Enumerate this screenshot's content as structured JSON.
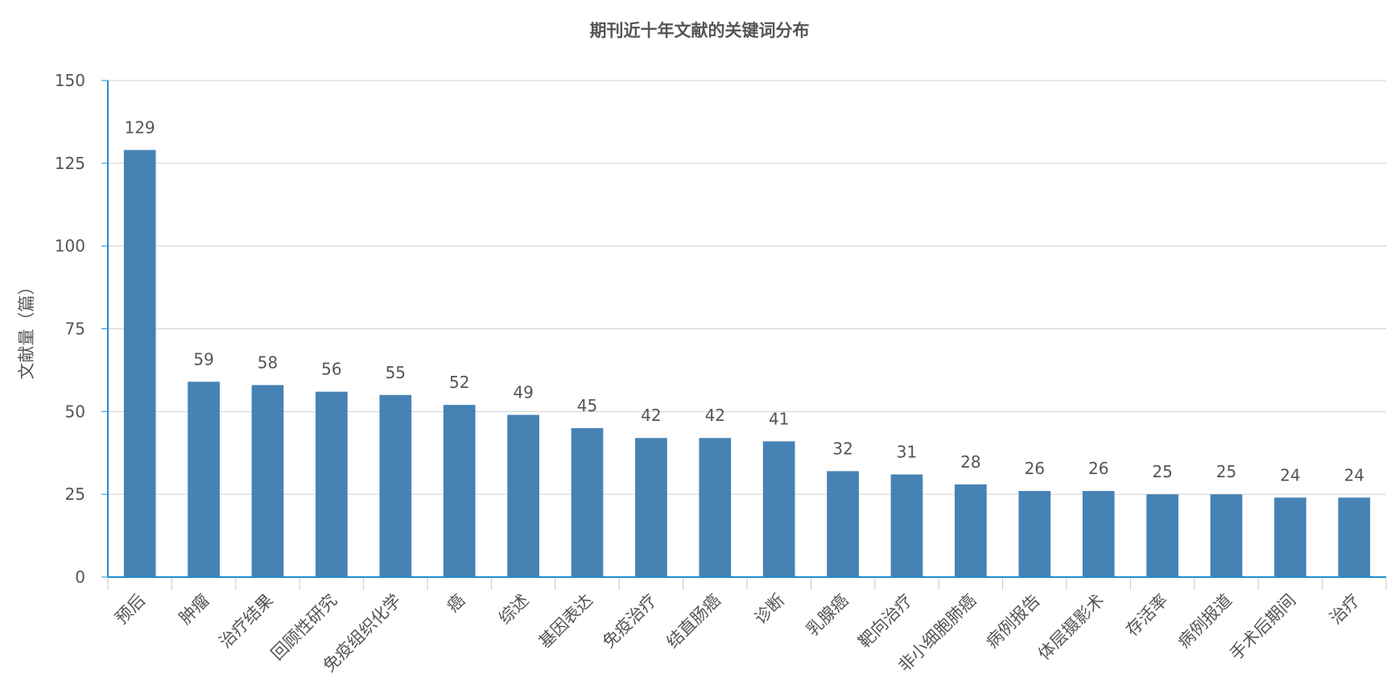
{
  "chart_data": {
    "type": "bar",
    "title": "期刊近十年文献的关键词分布",
    "xlabel": "",
    "ylabel": "文献量（篇）",
    "ylim": [
      0,
      150
    ],
    "yticks": [
      0,
      25,
      50,
      75,
      100,
      125,
      150
    ],
    "grid": true,
    "categories": [
      "预后",
      "肿瘤",
      "治疗结果",
      "回顾性研究",
      "免疫组织化学",
      "癌",
      "综述",
      "基因表达",
      "免疫治疗",
      "结直肠癌",
      "诊断",
      "乳腺癌",
      "靶向治疗",
      "非小细胞肺癌",
      "病例报告",
      "体层摄影术",
      "存活率",
      "病例报道",
      "手术后期间",
      "治疗"
    ],
    "values": [
      129,
      59,
      58,
      56,
      55,
      52,
      49,
      45,
      42,
      42,
      41,
      32,
      31,
      28,
      26,
      26,
      25,
      25,
      24,
      24
    ],
    "colors": {
      "bar": "#4682b4",
      "axis": "#1f8fc8",
      "grid": "#d0d0d0",
      "text": "#555555"
    }
  }
}
